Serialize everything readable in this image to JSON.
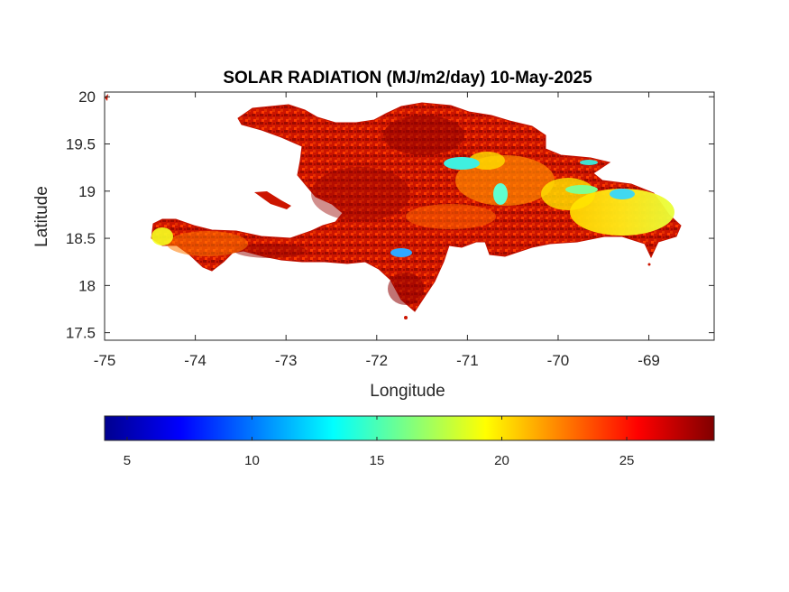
{
  "title": "SOLAR RADIATION (MJ/m2/day) 10-May-2025",
  "xlabel": "Longitude",
  "ylabel": "Latitude",
  "xticks": [
    "-75",
    "-74",
    "-73",
    "-72",
    "-71",
    "-70",
    "-69"
  ],
  "yticks": [
    "20",
    "19.5",
    "19",
    "18.5",
    "18",
    "17.5"
  ],
  "colorbar": {
    "ticks": [
      "5",
      "10",
      "15",
      "20",
      "25"
    ],
    "colormap": "jet",
    "range": [
      4.1,
      28.5
    ]
  },
  "chart_data": {
    "type": "heatmap",
    "title": "SOLAR RADIATION (MJ/m2/day) 10-May-2025",
    "xlabel": "Longitude",
    "ylabel": "Latitude",
    "xlim": [
      -75,
      -68.28
    ],
    "ylim": [
      17.42,
      20.05
    ],
    "xticks": [
      -75,
      -74,
      -73,
      -72,
      -71,
      -70,
      -69
    ],
    "yticks": [
      17.5,
      18,
      18.5,
      19,
      19.5,
      20
    ],
    "color_range": [
      4.1,
      28.5
    ],
    "colorbar_ticks": [
      5,
      10,
      15,
      20,
      25
    ],
    "colorbar_orientation": "horizontal-below",
    "region": "Hispaniola (Haiti and Dominican Republic)",
    "dominant_value_range": [
      22,
      28
    ],
    "low_value_areas": [
      {
        "lon": -70.9,
        "lat": 19.27,
        "approx_value": 15
      },
      {
        "lon": -70.55,
        "lat": 18.9,
        "approx_value": 14
      },
      {
        "lon": -69.6,
        "lat": 18.95,
        "approx_value": 15
      },
      {
        "lon": -71.75,
        "lat": 18.35,
        "approx_value": 12
      }
    ],
    "moderate_value_areas": [
      {
        "lon": -70.0,
        "lat": 18.85,
        "approx_value": 20
      },
      {
        "lon": -74.35,
        "lat": 18.5,
        "approx_value": 20
      }
    ]
  }
}
